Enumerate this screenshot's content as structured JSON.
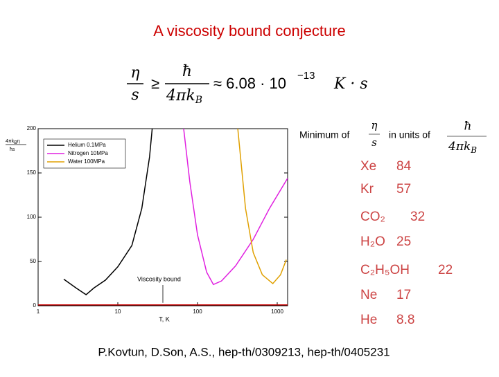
{
  "title": "A viscosity bound conjecture",
  "formula": {
    "lhs_num": "η",
    "lhs_den": "s",
    "rel": "≥",
    "rhs_num": "ħ",
    "rhs_den": "4πk",
    "rhs_den_sub": "B",
    "approx": "≈ 6.08 · 10",
    "exp": "−13",
    "tail": "K · s"
  },
  "table": {
    "header": {
      "prefix": "Minimum of",
      "ratio_num": "η",
      "ratio_den": "s",
      "middle": "in units of",
      "unit_num": "ħ",
      "unit_den": "4πk",
      "unit_den_sub": "B"
    },
    "rows": [
      [
        "Xe",
        "84"
      ],
      [
        "Kr",
        "57"
      ],
      [
        "CO₂",
        "32"
      ],
      [
        "H₂O",
        "25"
      ],
      [
        "C₂H₅OH",
        "22"
      ],
      [
        "Ne",
        "17"
      ],
      [
        "He",
        "8.8"
      ]
    ]
  },
  "citation": "P.Kovtun, D.Son, A.S., hep-th/0309213, hep-th/0405231",
  "chart_data": {
    "type": "line",
    "y_label_num": "4πk",
    "y_label_num_sub": "B",
    "y_label_num_tail": "η",
    "y_label_den": "ħs",
    "x_label": "T, K",
    "log_x": true,
    "xlim": [
      1,
      1350
    ],
    "ylim": [
      0,
      200
    ],
    "xticks": [
      1,
      10,
      100,
      1000
    ],
    "yticks": [
      0,
      50,
      100,
      150,
      200
    ],
    "legend": "top-left",
    "series": [
      {
        "name": "Helium 0.1MPa",
        "color": "#000000",
        "x": [
          2.1,
          3,
          4,
          5,
          7,
          10,
          15,
          20,
          25,
          27
        ],
        "values": [
          30,
          20,
          12.5,
          20,
          29,
          44,
          68,
          110,
          168,
          200
        ]
      },
      {
        "name": "Nitrogen 10MPa",
        "color": "#e020e0",
        "x": [
          67,
          80,
          100,
          130,
          158,
          200,
          300,
          500,
          800,
          1350
        ],
        "values": [
          200,
          140,
          80,
          38,
          24,
          28,
          45,
          75,
          110,
          144
        ]
      },
      {
        "name": "Water 100MPa",
        "color": "#e0a000",
        "x": [
          320,
          400,
          500,
          650,
          880,
          1100,
          1300
        ],
        "values": [
          200,
          110,
          60,
          35,
          25,
          35,
          52
        ]
      }
    ],
    "annotation": {
      "text": "Viscosity bound",
      "value": 1,
      "color": "#cc0000"
    }
  }
}
